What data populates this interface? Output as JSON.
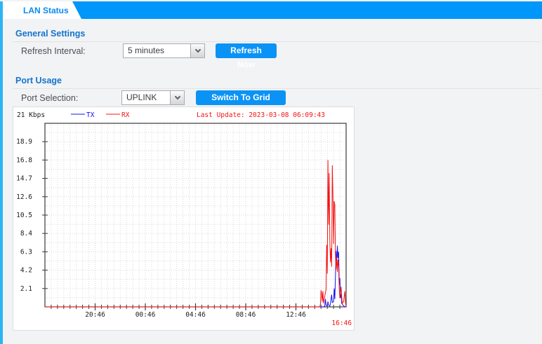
{
  "tab": {
    "label": "LAN Status"
  },
  "general": {
    "title": "General Settings",
    "refresh_label": "Refresh Interval:",
    "refresh_value": "5 minutes",
    "refresh_button": "Refresh Now"
  },
  "port": {
    "title": "Port Usage",
    "selection_label": "Port Selection:",
    "selection_value": "UPLINK",
    "grid_button": "Switch To Grid View"
  },
  "colors": {
    "strip_blue": "#0096fa",
    "accent_cyan": "#2cb4f5",
    "heading_blue": "#1474cd",
    "button_blue": "#0a93f5",
    "tx_blue": "#1414f0",
    "rx_red": "#f51414",
    "grid_gray": "#d9d9d9",
    "axis_dark": "#3a3a3a"
  },
  "chart_data": {
    "type": "line",
    "y_axis_title": "21 Kbps",
    "last_update": "Last Update: 2023-03-08 06:09:43",
    "y_max": 21,
    "y_tick": 2.1,
    "y_tick_labels": [
      "2.1",
      "4.2",
      "6.3",
      "8.4",
      "10.5",
      "12.6",
      "14.7",
      "16.8",
      "18.9"
    ],
    "x_range_hours": [
      0,
      24
    ],
    "x_minor_step_h": 0.5,
    "x_major_ticks": [
      {
        "h": 4,
        "label": "20:46"
      },
      {
        "h": 8,
        "label": "00:46"
      },
      {
        "h": 12,
        "label": "04:46"
      },
      {
        "h": 16,
        "label": "08:46"
      },
      {
        "h": 20,
        "label": "12:46"
      }
    ],
    "end_time_label": "16:46",
    "legend": [
      {
        "name": "TX",
        "color": "#1414f0"
      },
      {
        "name": "RX",
        "color": "#f51414"
      }
    ],
    "grid": true,
    "legend_position": "top",
    "series": [
      {
        "name": "TX",
        "color": "#1414f0",
        "points": [
          [
            0,
            0
          ],
          [
            22.2,
            0
          ],
          [
            22.3,
            0.1
          ],
          [
            22.35,
            0.9
          ],
          [
            22.4,
            0.2
          ],
          [
            22.5,
            0.1
          ],
          [
            22.55,
            0.6
          ],
          [
            22.6,
            0.2
          ],
          [
            22.7,
            0.1
          ],
          [
            22.75,
            0.4
          ],
          [
            22.85,
            1.4
          ],
          [
            22.9,
            0.5
          ],
          [
            23.0,
            0.6
          ],
          [
            23.05,
            2.1
          ],
          [
            23.1,
            0.9
          ],
          [
            23.15,
            3.5
          ],
          [
            23.2,
            6.4
          ],
          [
            23.25,
            4.8
          ],
          [
            23.3,
            7.0
          ],
          [
            23.35,
            5.6
          ],
          [
            23.4,
            6.3
          ],
          [
            23.45,
            2.5
          ],
          [
            23.5,
            3.3
          ],
          [
            23.55,
            1.0
          ],
          [
            23.6,
            1.5
          ],
          [
            23.65,
            0.4
          ],
          [
            23.75,
            0.2
          ],
          [
            23.9,
            0
          ],
          [
            24,
            0
          ]
        ]
      },
      {
        "name": "RX",
        "color": "#f51414",
        "points": [
          [
            0,
            0
          ],
          [
            21.9,
            0
          ],
          [
            21.95,
            0.3
          ],
          [
            22.0,
            1.9
          ],
          [
            22.05,
            1.5
          ],
          [
            22.1,
            0.6
          ],
          [
            22.15,
            1.8
          ],
          [
            22.2,
            0.4
          ],
          [
            22.25,
            0.8
          ],
          [
            22.3,
            1.2
          ],
          [
            22.4,
            2.0
          ],
          [
            22.45,
            7.1
          ],
          [
            22.5,
            3.8
          ],
          [
            22.55,
            16.8
          ],
          [
            22.6,
            9.4
          ],
          [
            22.65,
            15.3
          ],
          [
            22.7,
            7.6
          ],
          [
            22.75,
            5.1
          ],
          [
            22.8,
            6.7
          ],
          [
            22.85,
            4.6
          ],
          [
            22.9,
            16.2
          ],
          [
            22.95,
            12.7
          ],
          [
            23.0,
            7.2
          ],
          [
            23.05,
            12.1
          ],
          [
            23.1,
            11.7
          ],
          [
            23.15,
            6.0
          ],
          [
            23.2,
            4.3
          ],
          [
            23.25,
            5.7
          ],
          [
            23.3,
            4.0
          ],
          [
            23.35,
            5.4
          ],
          [
            23.4,
            4.6
          ],
          [
            23.45,
            2.0
          ],
          [
            23.5,
            1.0
          ],
          [
            23.55,
            1.6
          ],
          [
            23.6,
            2.3
          ],
          [
            23.65,
            1.1
          ],
          [
            23.7,
            0.4
          ],
          [
            23.8,
            0.6
          ],
          [
            23.9,
            1.8
          ],
          [
            23.95,
            0.5
          ],
          [
            24,
            0
          ]
        ]
      }
    ]
  }
}
